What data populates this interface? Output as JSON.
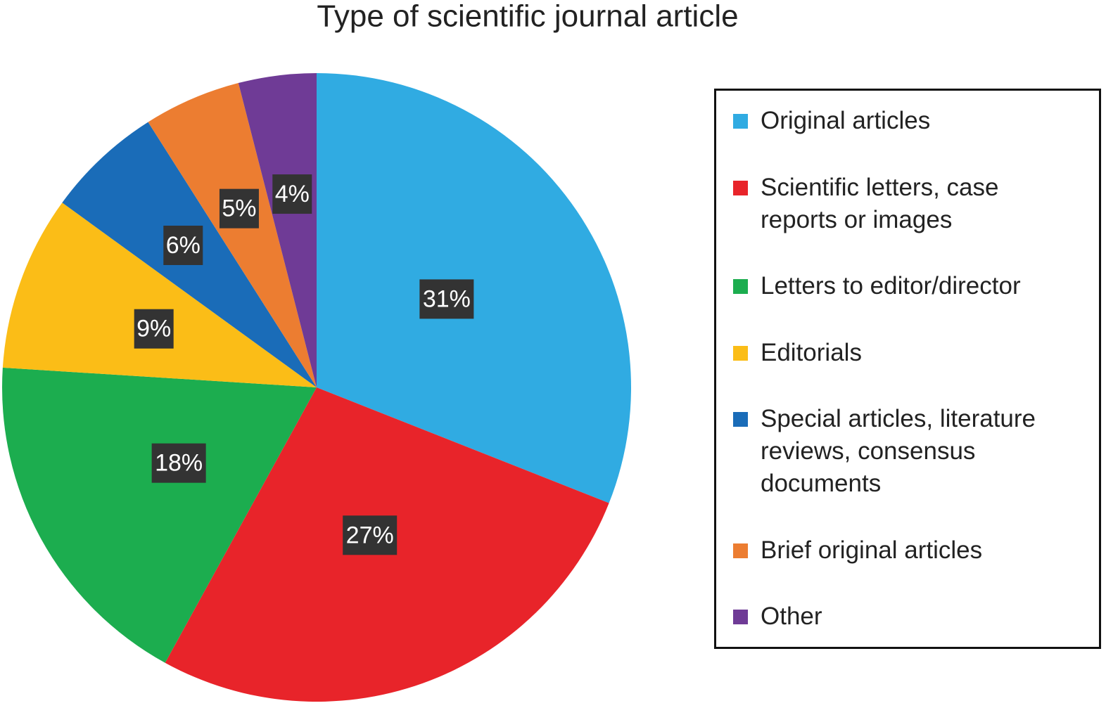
{
  "chart_data": {
    "type": "pie",
    "title": "Type of scientific journal article",
    "categories": [
      "Original articles",
      "Scientific letters, case reports or images",
      "Letters to editor/director",
      "Editorials",
      "Special articles, literature reviews, consensus documents",
      "Brief original articles",
      "Other"
    ],
    "values": [
      31,
      27,
      18,
      9,
      6,
      5,
      4
    ],
    "value_labels": [
      "31%",
      "27%",
      "18%",
      "9%",
      "6%",
      "5%",
      "4%"
    ],
    "colors": [
      "#30abe2",
      "#e8242a",
      "#1cad4f",
      "#fbbd17",
      "#1a6cb8",
      "#ec7d31",
      "#6f3b96"
    ],
    "legend": "right"
  }
}
